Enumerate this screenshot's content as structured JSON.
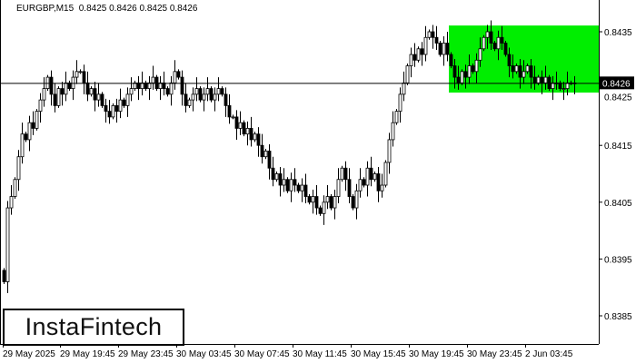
{
  "header": {
    "symbol": "EURGBP,M15",
    "ohlc": "0.8425 0.8426 0.8425 0.8426"
  },
  "logo": "InstaFintech",
  "colors": {
    "pattern_zone": "#00ee00",
    "candle": "#000000",
    "price_label_bg": "#000000"
  },
  "chart_data": {
    "type": "candlestick",
    "title": "EURGBP,M15",
    "y_ticks": [
      "0.8435",
      "0.8425",
      "0.8415",
      "0.8405",
      "0.8395",
      "0.8385"
    ],
    "ylim": [
      0.83795,
      0.84406
    ],
    "x_ticks": [
      "29 May 2025",
      "29 May 19:45",
      "29 May 23:45",
      "30 May 03:45",
      "30 May 07:45",
      "30 May 11:45",
      "30 May 15:45",
      "30 May 19:45",
      "30 May 23:45",
      "2 Jun 03:45"
    ],
    "current_price": "0.8426",
    "zone": {
      "top": 0.84361,
      "bottom": 0.84243,
      "start_index": 123
    },
    "closes": [
      0.8391,
      0.8404,
      0.8406,
      0.8409,
      0.8413,
      0.8417,
      0.8416,
      0.8419,
      0.8418,
      0.8421,
      0.8423,
      0.8425,
      0.8427,
      0.8424,
      0.8422,
      0.8425,
      0.8424,
      0.8426,
      0.8425,
      0.8427,
      0.8428,
      0.8428,
      0.8426,
      0.8424,
      0.8425,
      0.8423,
      0.8424,
      0.8422,
      0.8421,
      0.842,
      0.8422,
      0.8421,
      0.8423,
      0.8422,
      0.8424,
      0.8425,
      0.8426,
      0.8425,
      0.8426,
      0.8425,
      0.8426,
      0.8427,
      0.8425,
      0.8426,
      0.8425,
      0.8424,
      0.8426,
      0.8428,
      0.8427,
      0.8424,
      0.8422,
      0.8423,
      0.8424,
      0.8425,
      0.8423,
      0.8424,
      0.8425,
      0.8423,
      0.8424,
      0.8425,
      0.8424,
      0.8422,
      0.842,
      0.842,
      0.8418,
      0.8419,
      0.8417,
      0.8418,
      0.8416,
      0.8417,
      0.8415,
      0.8413,
      0.8414,
      0.8411,
      0.8409,
      0.841,
      0.8408,
      0.8409,
      0.8407,
      0.8409,
      0.8408,
      0.8407,
      0.8408,
      0.8406,
      0.8405,
      0.8406,
      0.8404,
      0.8403,
      0.8405,
      0.8406,
      0.8404,
      0.8406,
      0.8409,
      0.8411,
      0.8409,
      0.8406,
      0.8404,
      0.8407,
      0.8409,
      0.8408,
      0.8411,
      0.8409,
      0.841,
      0.8407,
      0.8408,
      0.8412,
      0.8416,
      0.8419,
      0.8421,
      0.8424,
      0.8426,
      0.8429,
      0.8431,
      0.843,
      0.8432,
      0.8431,
      0.8434,
      0.8435,
      0.8434,
      0.8433,
      0.8431,
      0.8433,
      0.8431,
      0.8429,
      0.8427,
      0.8426,
      0.8428,
      0.8427,
      0.8429,
      0.8428,
      0.843,
      0.8432,
      0.8434,
      0.8435,
      0.8433,
      0.8432,
      0.8434,
      0.8433,
      0.8431,
      0.8429,
      0.8428,
      0.8429,
      0.8427,
      0.8428,
      0.8429,
      0.8427,
      0.8426,
      0.8427,
      0.8426,
      0.8427,
      0.8425,
      0.8426,
      0.8426,
      0.8425,
      0.8425,
      0.8426,
      0.8426,
      0.8426
    ]
  }
}
